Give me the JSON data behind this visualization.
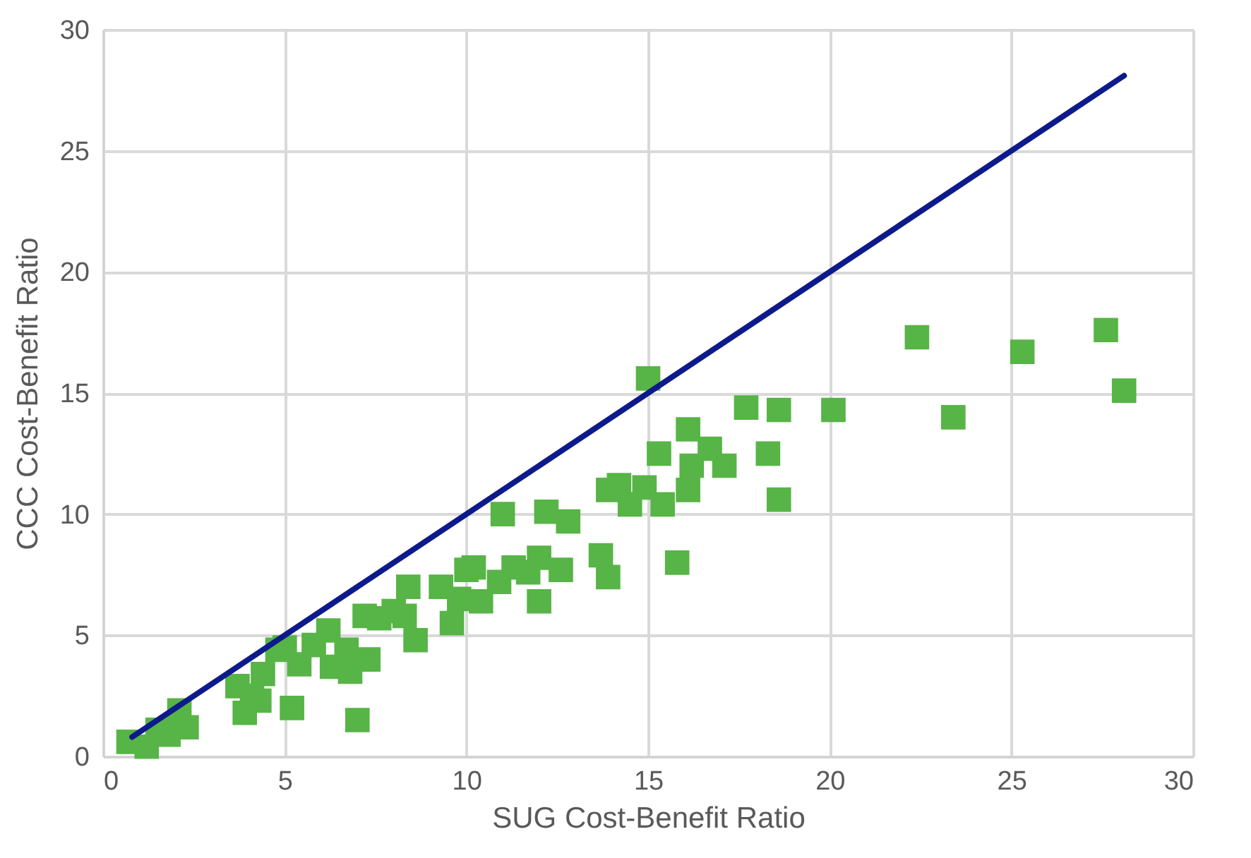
{
  "chart_data": {
    "type": "scatter",
    "xlabel": "SUG Cost-Benefit Ratio",
    "ylabel": "CCC Cost-Benefit Ratio",
    "xlim": [
      0,
      30
    ],
    "ylim": [
      0,
      30
    ],
    "xticks": [
      0,
      5,
      10,
      15,
      20,
      25,
      30
    ],
    "yticks": [
      0,
      5,
      10,
      15,
      20,
      25,
      30
    ],
    "grid": true,
    "x": [
      0.7,
      1.2,
      1.5,
      1.8,
      2.1,
      2.3,
      3.7,
      3.9,
      4.1,
      4.3,
      4.4,
      4.8,
      5.2,
      5.4,
      5.0,
      5.8,
      6.2,
      6.3,
      6.8,
      6.7,
      7.0,
      7.2,
      7.3,
      7.6,
      8.0,
      8.4,
      8.3,
      8.6,
      9.3,
      9.6,
      9.8,
      10.0,
      10.2,
      10.4,
      10.9,
      11.0,
      11.3,
      11.7,
      12.0,
      12.0,
      12.2,
      12.6,
      12.8,
      13.7,
      13.9,
      13.9,
      14.2,
      14.5,
      14.9,
      15.0,
      15.3,
      15.4,
      15.8,
      16.1,
      16.1,
      16.2,
      16.7,
      17.1,
      17.7,
      18.3,
      18.6,
      18.6,
      20.1,
      22.4,
      23.4,
      25.3,
      27.6,
      28.1
    ],
    "series": [
      {
        "color": "#57b446",
        "marker": "square",
        "values": [
          0.6,
          0.4,
          1.1,
          0.9,
          1.9,
          1.2,
          2.9,
          1.8,
          2.5,
          2.3,
          3.4,
          4.4,
          2.0,
          3.8,
          4.5,
          4.6,
          5.2,
          3.7,
          3.5,
          4.4,
          1.5,
          5.8,
          4.0,
          5.7,
          6.0,
          7.0,
          5.8,
          4.8,
          7.0,
          5.5,
          6.5,
          7.7,
          7.8,
          6.4,
          7.2,
          10.0,
          7.8,
          7.6,
          8.2,
          6.4,
          10.1,
          7.7,
          9.7,
          8.3,
          7.4,
          11.0,
          11.2,
          10.4,
          11.1,
          15.6,
          12.5,
          10.4,
          8.0,
          11.0,
          13.5,
          12.0,
          12.7,
          12.0,
          14.4,
          12.5,
          14.3,
          10.6,
          14.3,
          17.3,
          14.0,
          16.7,
          17.6,
          15.1
        ]
      },
      {
        "type": "line",
        "color": "#0d1a8a",
        "x": [
          0.8,
          28.1
        ],
        "values": [
          0.8,
          28.1
        ]
      }
    ]
  }
}
